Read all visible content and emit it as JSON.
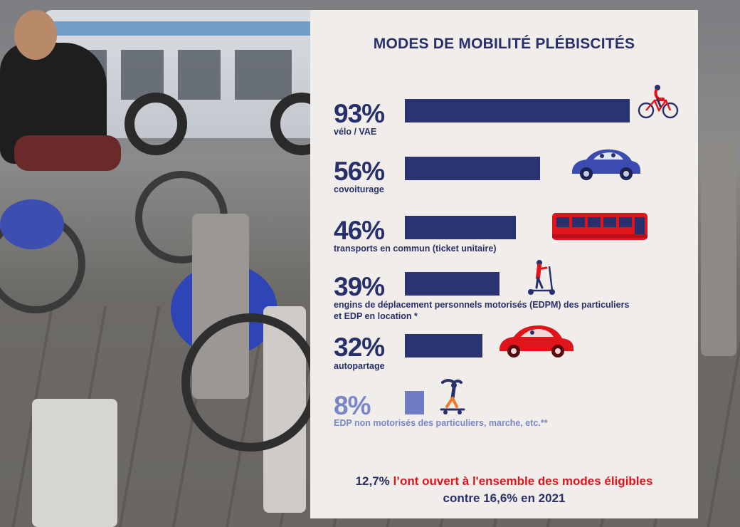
{
  "chart_data": {
    "type": "bar",
    "title": "MODES DE MOBILITÉ PLÉBISCITÉS",
    "orientation": "horizontal",
    "categories": [
      "vélo / VAE",
      "covoiturage",
      "transports en commun (ticket unitaire)",
      "engins de déplacement personnels motorisés (EDPM) des particuliers et EDP en location *",
      "autopartage",
      "EDP non motorisés des particuliers, marche, etc.**"
    ],
    "values": [
      93,
      56,
      46,
      39,
      32,
      8
    ],
    "value_labels": [
      "93%",
      "56%",
      "46%",
      "39%",
      "32%",
      "8%"
    ],
    "label_lines": [
      [
        "vélo / VAE"
      ],
      [
        "covoiturage"
      ],
      [
        "transports en commun (ticket unitaire)"
      ],
      [
        "engins de déplacement personnels motorisés (EDPM) des particuliers",
        "et EDP en location *"
      ],
      [
        "autopartage"
      ],
      [
        "EDP non motorisés des particuliers, marche, etc.**"
      ]
    ],
    "icons": [
      "bicycle-rider-icon",
      "car-blue-icon",
      "bus-icon",
      "scooter-rider-icon",
      "car-red-icon",
      "skateboard-rider-icon"
    ],
    "xlim": [
      0,
      100
    ],
    "colors": {
      "bar": "#2b3471",
      "bar_muted": "#6f7bc2",
      "text": "#27306b",
      "accent": "#e0141b",
      "background": "#f1edea"
    }
  },
  "footer": {
    "value_a": "12,7%",
    "text_a": "l’ont ouvert à l'ensemble des modes éligibles",
    "prefix_b": "contre",
    "value_b": "16,6%",
    "text_b": "en 2021"
  }
}
